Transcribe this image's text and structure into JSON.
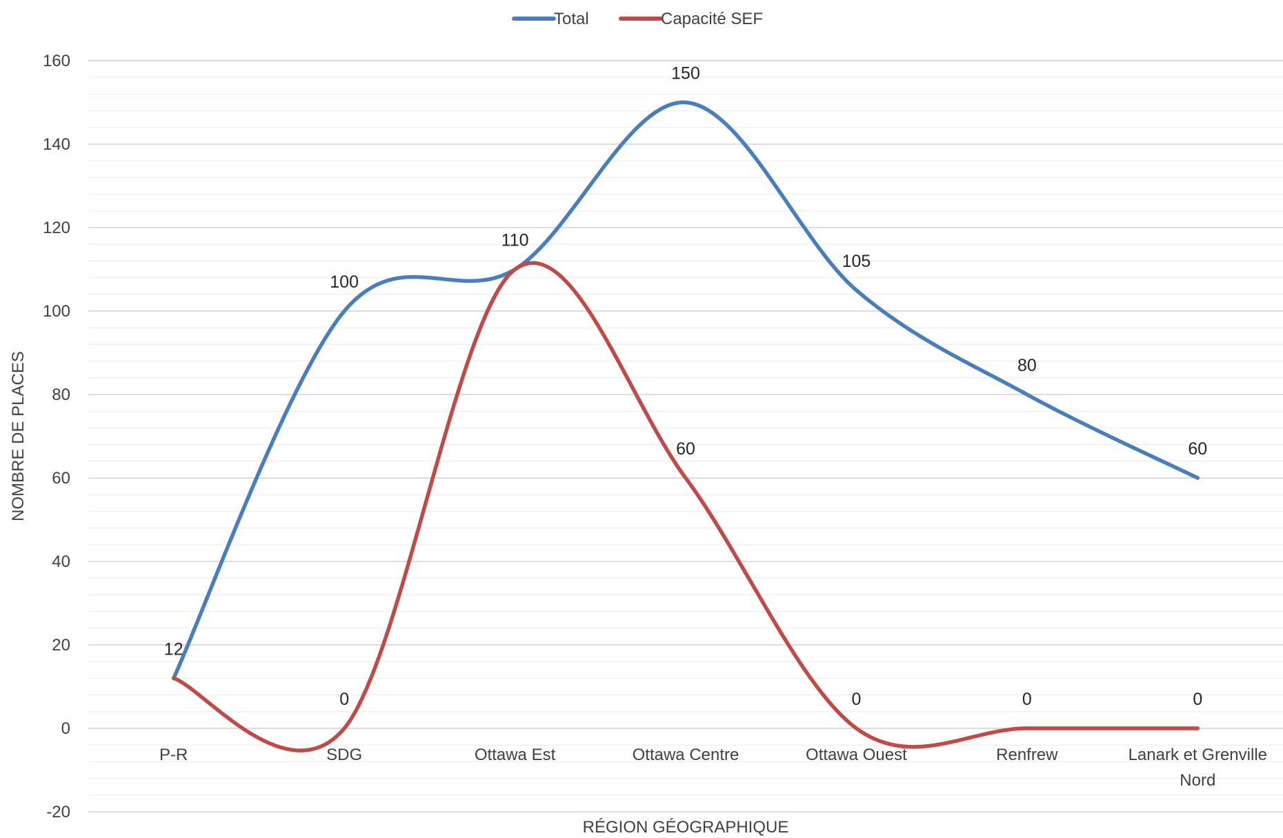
{
  "chart_data": {
    "type": "line",
    "title": "",
    "xlabel": "RÉGION GÉOGRAPHIQUE",
    "ylabel": "NOMBRE DE PLACES",
    "categories": [
      "P-R",
      "SDG",
      "Ottawa Est",
      "Ottawa Centre",
      "Ottawa Ouest",
      "Renfrew",
      "Lanark et Grenville Nord"
    ],
    "series": [
      {
        "name": "Total",
        "color": "#4a7ebb",
        "values": [
          12,
          100,
          110,
          150,
          105,
          80,
          60
        ]
      },
      {
        "name": "Capacité SEF",
        "color": "#be4b48",
        "values": [
          12,
          0,
          110,
          60,
          0,
          0,
          0
        ]
      }
    ],
    "data_labels": [
      {
        "series": 0,
        "index": 0,
        "text": "12"
      },
      {
        "series": 0,
        "index": 1,
        "text": "100"
      },
      {
        "series": 0,
        "index": 2,
        "text": "110"
      },
      {
        "series": 0,
        "index": 3,
        "text": "150"
      },
      {
        "series": 0,
        "index": 4,
        "text": "105"
      },
      {
        "series": 0,
        "index": 5,
        "text": "80"
      },
      {
        "series": 0,
        "index": 6,
        "text": "60"
      },
      {
        "series": 1,
        "index": 1,
        "text": "0"
      },
      {
        "series": 1,
        "index": 3,
        "text": "60"
      },
      {
        "series": 1,
        "index": 4,
        "text": "0"
      },
      {
        "series": 1,
        "index": 5,
        "text": "0"
      },
      {
        "series": 1,
        "index": 6,
        "text": "0"
      }
    ],
    "ylim": [
      -20,
      160
    ],
    "yticks": [
      -20,
      0,
      20,
      40,
      60,
      80,
      100,
      120,
      140,
      160
    ],
    "minor_grid_step": 4,
    "smooth": true,
    "grid": true,
    "legend_position": "top-center"
  }
}
